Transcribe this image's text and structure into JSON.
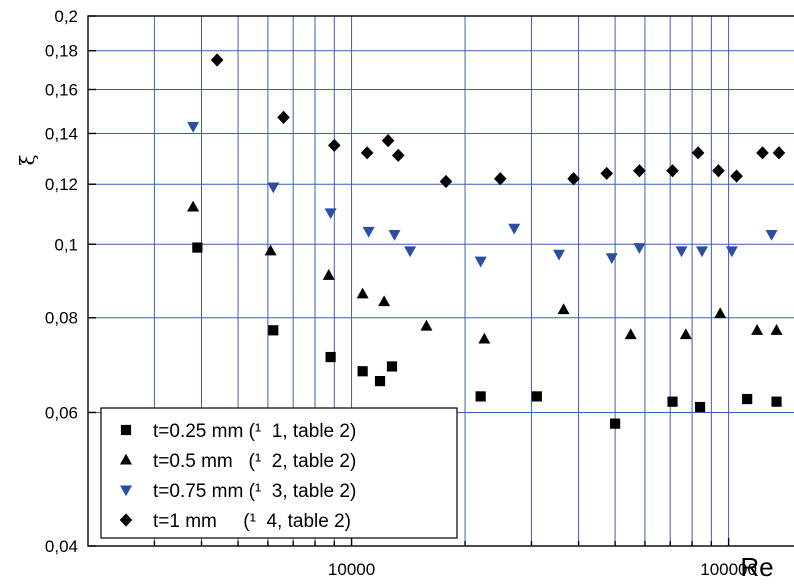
{
  "chart_data": {
    "type": "scatter",
    "xlabel": "Re",
    "ylabel": "ξ",
    "x_scale": "log",
    "y_scale": "log",
    "xlim": [
      2000,
      150000
    ],
    "ylim": [
      0.04,
      0.2
    ],
    "x_ticks": [
      {
        "value": 10000,
        "label": "10000"
      },
      {
        "value": 100000,
        "label": "100000"
      }
    ],
    "y_ticks": [
      {
        "value": 0.04,
        "label": "0,04"
      },
      {
        "value": 0.06,
        "label": "0,06"
      },
      {
        "value": 0.08,
        "label": "0,08"
      },
      {
        "value": 0.1,
        "label": "0,1"
      },
      {
        "value": 0.12,
        "label": "0,12"
      },
      {
        "value": 0.14,
        "label": "0,14"
      },
      {
        "value": 0.16,
        "label": "0,16"
      },
      {
        "value": 0.18,
        "label": "0,18"
      },
      {
        "value": 0.2,
        "label": "0,2"
      }
    ],
    "grid": true,
    "grid_color": "#3b5eb5",
    "legend_position": "bottom-left",
    "series": [
      {
        "name": "t=0.25 mm (¹  1, table 2)",
        "marker": "square",
        "color": "#000000",
        "points": [
          [
            3900,
            0.099
          ],
          [
            6200,
            0.077
          ],
          [
            8800,
            0.071
          ],
          [
            10700,
            0.068
          ],
          [
            11900,
            0.066
          ],
          [
            12800,
            0.069
          ],
          [
            22000,
            0.063
          ],
          [
            31000,
            0.063
          ],
          [
            50000,
            0.058
          ],
          [
            71000,
            0.062
          ],
          [
            84000,
            0.061
          ],
          [
            112000,
            0.0625
          ],
          [
            134000,
            0.062
          ]
        ]
      },
      {
        "name": "t=0.5 mm   (¹  2, table 2)",
        "marker": "triangle-up",
        "color": "#000000",
        "points": [
          [
            3800,
            0.112
          ],
          [
            6100,
            0.098
          ],
          [
            8700,
            0.091
          ],
          [
            10700,
            0.086
          ],
          [
            12200,
            0.084
          ],
          [
            15800,
            0.078
          ],
          [
            22500,
            0.075
          ],
          [
            36500,
            0.082
          ],
          [
            55000,
            0.076
          ],
          [
            77000,
            0.076
          ],
          [
            95000,
            0.081
          ],
          [
            119000,
            0.077
          ],
          [
            134000,
            0.077
          ]
        ]
      },
      {
        "name": "t=0.75 mm (¹  3, table 2)",
        "marker": "triangle-down",
        "color": "#2b4da3",
        "points": [
          [
            3800,
            0.143
          ],
          [
            6200,
            0.119
          ],
          [
            8800,
            0.11
          ],
          [
            11100,
            0.104
          ],
          [
            13000,
            0.103
          ],
          [
            14300,
            0.098
          ],
          [
            22000,
            0.095
          ],
          [
            27000,
            0.105
          ],
          [
            35500,
            0.097
          ],
          [
            49000,
            0.096
          ],
          [
            58000,
            0.099
          ],
          [
            75000,
            0.098
          ],
          [
            85000,
            0.098
          ],
          [
            102000,
            0.098
          ],
          [
            130000,
            0.103
          ]
        ]
      },
      {
        "name": "t=1 mm     (¹  4, table 2)",
        "marker": "diamond",
        "color": "#000000",
        "points": [
          [
            4400,
            0.175
          ],
          [
            6600,
            0.147
          ],
          [
            9000,
            0.135
          ],
          [
            11000,
            0.132
          ],
          [
            12500,
            0.137
          ],
          [
            13300,
            0.131
          ],
          [
            17800,
            0.121
          ],
          [
            24800,
            0.122
          ],
          [
            38800,
            0.122
          ],
          [
            47500,
            0.124
          ],
          [
            58000,
            0.125
          ],
          [
            71000,
            0.125
          ],
          [
            83000,
            0.132
          ],
          [
            94000,
            0.125
          ],
          [
            105000,
            0.123
          ],
          [
            123000,
            0.132
          ],
          [
            136000,
            0.132
          ]
        ]
      }
    ]
  }
}
